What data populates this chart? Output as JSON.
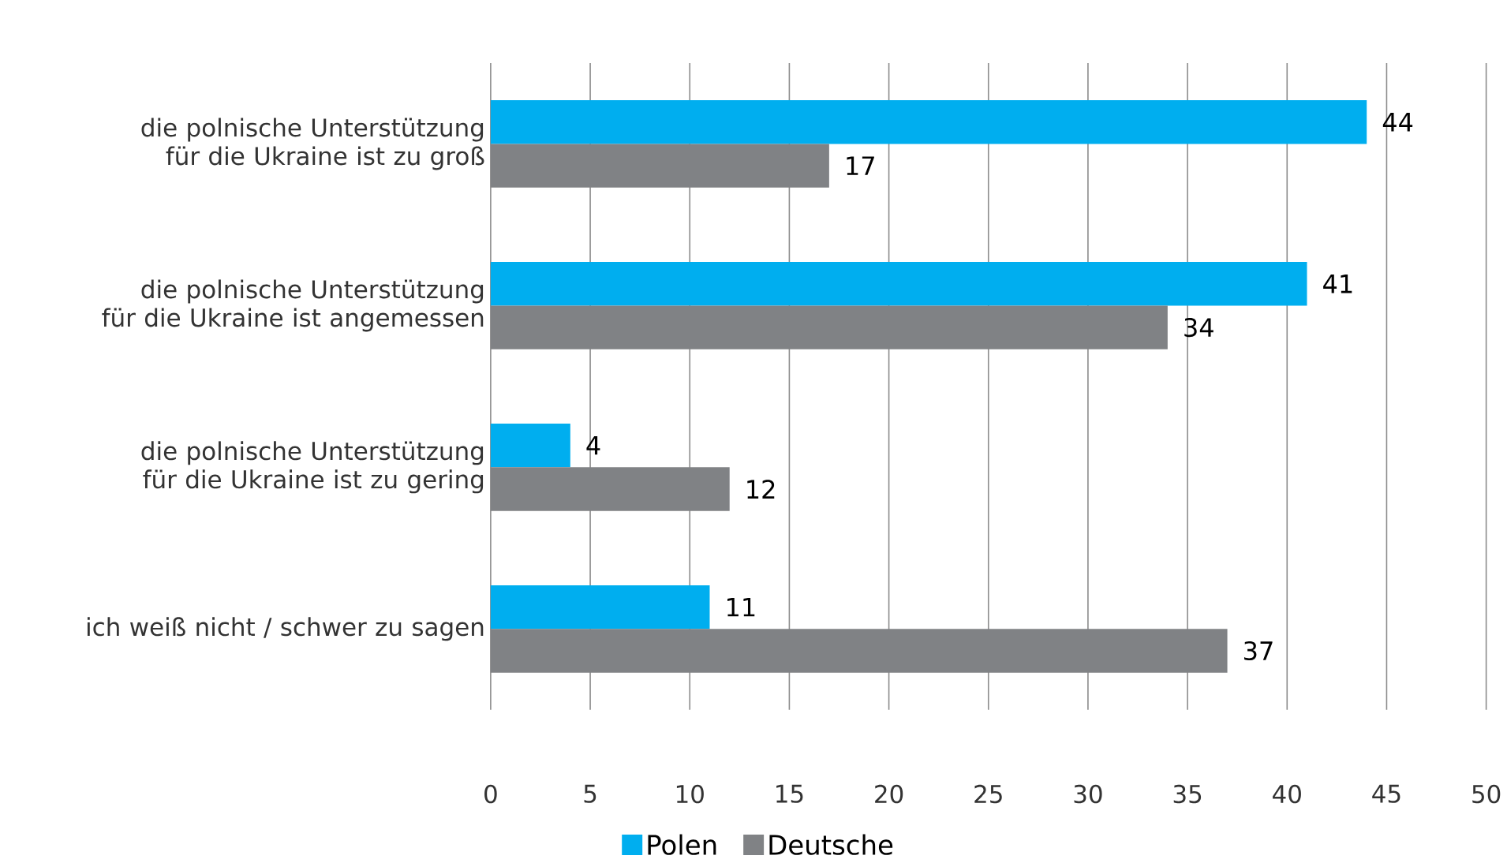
{
  "chart_data": {
    "type": "bar",
    "orientation": "horizontal",
    "categories": [
      "die polnische Unterstützung für die Ukraine ist zu groß",
      "die polnische Unterstützung für die Ukraine ist angemessen",
      "die polnische Unterstützung für die Ukraine ist zu gering",
      "ich weiß nicht / schwer zu sagen"
    ],
    "series": [
      {
        "name": "Polen",
        "color": "#00aeef",
        "values": [
          44,
          41,
          4,
          11
        ]
      },
      {
        "name": "Deutsche",
        "color": "#808285",
        "values": [
          17,
          34,
          12,
          37
        ]
      }
    ],
    "xlim": [
      0,
      50
    ],
    "xticks": [
      0,
      5,
      10,
      15,
      20,
      25,
      30,
      35,
      40,
      45,
      50
    ],
    "grid": "x",
    "legend": "bottom",
    "data_labels": true
  }
}
